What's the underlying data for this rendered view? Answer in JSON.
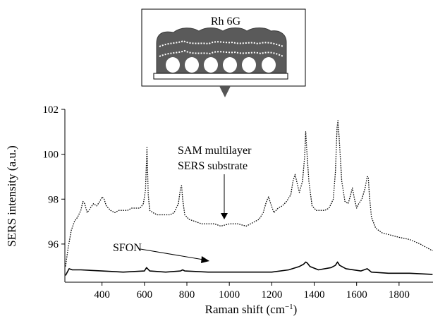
{
  "chart_data": {
    "type": "line",
    "title": "",
    "xlabel": "Raman shift (cm",
    "xlabel_superscript": "−1",
    "xlabel_close": ")",
    "ylabel": "SERS intensity (a.u.)",
    "xlim": [
      225,
      1960
    ],
    "ylim": [
      94.3,
      102
    ],
    "xticks": [
      400,
      600,
      800,
      1000,
      1200,
      1400,
      1600,
      1800
    ],
    "yticks": [
      96,
      98,
      100,
      102
    ],
    "grid": false,
    "inset_label": "Rh 6G",
    "series": [
      {
        "name": "SAM multilayer SERS substrate",
        "style": "dotted",
        "x": [
          228,
          240,
          255,
          270,
          285,
          300,
          310,
          318,
          330,
          345,
          360,
          375,
          390,
          400,
          410,
          420,
          440,
          460,
          480,
          500,
          520,
          540,
          560,
          580,
          595,
          605,
          612,
          618,
          625,
          640,
          660,
          680,
          700,
          720,
          740,
          760,
          770,
          775,
          780,
          790,
          810,
          840,
          870,
          900,
          930,
          960,
          1000,
          1040,
          1080,
          1100,
          1120,
          1140,
          1160,
          1175,
          1185,
          1195,
          1210,
          1230,
          1250,
          1270,
          1290,
          1300,
          1310,
          1320,
          1330,
          1345,
          1355,
          1360,
          1365,
          1375,
          1390,
          1410,
          1430,
          1450,
          1470,
          1490,
          1500,
          1508,
          1512,
          1518,
          1530,
          1545,
          1560,
          1572,
          1580,
          1590,
          1600,
          1610,
          1625,
          1640,
          1650,
          1655,
          1660,
          1670,
          1690,
          1720,
          1760,
          1800,
          1850,
          1900,
          1958
        ],
        "y": [
          95.0,
          95.8,
          96.6,
          97.0,
          97.2,
          97.5,
          97.9,
          97.8,
          97.4,
          97.6,
          97.8,
          97.7,
          97.9,
          98.1,
          98.0,
          97.7,
          97.5,
          97.4,
          97.5,
          97.5,
          97.5,
          97.6,
          97.6,
          97.6,
          97.8,
          98.4,
          100.3,
          98.2,
          97.5,
          97.4,
          97.3,
          97.3,
          97.3,
          97.3,
          97.4,
          97.8,
          98.5,
          98.6,
          98.0,
          97.3,
          97.1,
          97.0,
          96.9,
          96.9,
          96.9,
          96.8,
          96.9,
          96.9,
          96.8,
          96.9,
          97.0,
          97.1,
          97.4,
          97.9,
          98.1,
          97.8,
          97.4,
          97.6,
          97.7,
          97.9,
          98.2,
          98.8,
          99.1,
          98.7,
          98.3,
          98.8,
          99.9,
          101.0,
          100.2,
          98.8,
          97.7,
          97.5,
          97.5,
          97.5,
          97.6,
          98.0,
          99.2,
          101.2,
          101.5,
          100.7,
          98.8,
          97.9,
          97.8,
          98.2,
          98.5,
          98.0,
          97.6,
          97.8,
          98.0,
          98.5,
          99.0,
          99.0,
          98.2,
          97.2,
          96.7,
          96.5,
          96.4,
          96.3,
          96.2,
          96.0,
          95.7
        ]
      },
      {
        "name": "SFON",
        "style": "solid",
        "x": [
          228,
          245,
          260,
          300,
          400,
          500,
          600,
          610,
          615,
          625,
          700,
          770,
          780,
          790,
          900,
          1000,
          1100,
          1200,
          1280,
          1330,
          1350,
          1360,
          1368,
          1380,
          1420,
          1480,
          1500,
          1510,
          1520,
          1550,
          1620,
          1650,
          1670,
          1750,
          1850,
          1958
        ],
        "y": [
          94.6,
          94.9,
          94.85,
          94.85,
          94.8,
          94.75,
          94.8,
          94.95,
          94.9,
          94.8,
          94.75,
          94.8,
          94.85,
          94.8,
          94.75,
          94.75,
          94.75,
          94.75,
          94.85,
          95.0,
          95.1,
          95.2,
          95.15,
          95.0,
          94.85,
          94.95,
          95.05,
          95.2,
          95.05,
          94.9,
          94.8,
          94.9,
          94.75,
          94.7,
          94.7,
          94.65
        ]
      }
    ],
    "annotations": [
      {
        "name": "sam-multilayer-annotation",
        "lines": [
          "SAM multilayer",
          "SERS substrate"
        ],
        "points_to": {
          "x": 970,
          "y": 96.85
        }
      },
      {
        "name": "sfon-annotation",
        "lines": [
          "SFON"
        ],
        "points_to": {
          "x": 930,
          "y": 94.85
        }
      }
    ]
  }
}
